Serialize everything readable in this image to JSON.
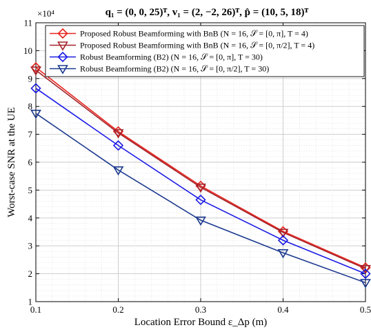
{
  "chart_data": {
    "type": "line",
    "title": "q₁ = (0, 0, 25)ᵀ, v₁ = (2, −2, 26)ᵀ, p̂ = (10, 5, 18)ᵀ",
    "xlabel": "Location Error Bound ε_Δp (m)",
    "ylabel": "Worst-case SNR at the UE",
    "y_multiplier": "×10⁴",
    "x": [
      0.1,
      0.2,
      0.3,
      0.4,
      0.5
    ],
    "xlim": [
      0.1,
      0.5
    ],
    "ylim": [
      1,
      11
    ],
    "x_ticks": [
      "0.1",
      "0.2",
      "0.3",
      "0.4",
      "0.5"
    ],
    "y_ticks": [
      "1",
      "2",
      "3",
      "4",
      "5",
      "6",
      "7",
      "8",
      "9",
      "10",
      "11"
    ],
    "grid": true,
    "legend_position": "top-right",
    "series": [
      {
        "name": "Proposed Robust Beamforming with BnB (N = 16, 𝒮 = [0, π], T = 4)",
        "values": [
          9.4,
          7.1,
          5.15,
          3.52,
          2.22
        ],
        "color": "#e8221b",
        "marker": "diamond"
      },
      {
        "name": "Proposed Robust Beamforming with BnB (N = 16, 𝒮 = [0, π/2], T = 4)",
        "values": [
          9.3,
          7.05,
          5.1,
          3.48,
          2.18
        ],
        "color": "#a4232a",
        "marker": "triangle-down"
      },
      {
        "name": "Robust Beamforming (B2) (N = 16, 𝒮 = [0, π], T = 30)",
        "values": [
          8.65,
          6.6,
          4.65,
          3.2,
          2.0
        ],
        "color": "#1a1ae6",
        "marker": "diamond"
      },
      {
        "name": "Robust Beamforming (B2) (N = 16, 𝒮 = [0, π/2], T = 30)",
        "values": [
          7.75,
          5.72,
          3.92,
          2.75,
          1.68
        ],
        "color": "#1c3a8f",
        "marker": "triangle-down"
      }
    ]
  }
}
